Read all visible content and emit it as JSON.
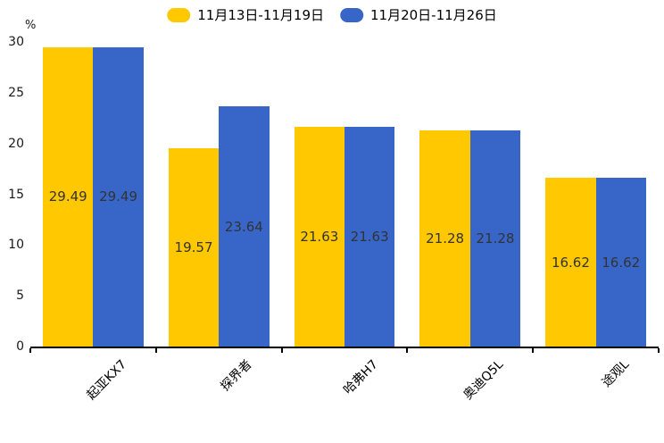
{
  "chart_data": {
    "type": "bar",
    "title": "",
    "unit": "%",
    "categories": [
      "起亚KX7",
      "探界者",
      "哈弗H7",
      "奥迪Q5L",
      "途观L"
    ],
    "series": [
      {
        "name": "11月13日-11月19日",
        "color": "#FFC800",
        "values": [
          29.49,
          19.57,
          21.63,
          21.28,
          16.62
        ]
      },
      {
        "name": "11月20日-11月26日",
        "color": "#3866C8",
        "values": [
          29.49,
          23.64,
          21.63,
          21.28,
          16.62
        ]
      }
    ],
    "ylim": [
      0,
      30
    ],
    "yticks": [
      0,
      5,
      10,
      15,
      20,
      25,
      30
    ],
    "grid": false,
    "legend_position": "top-center",
    "value_labels": "inside-center",
    "value_label_color": "#333333",
    "axis_color": "#000000",
    "background_color": "#ffffff"
  }
}
